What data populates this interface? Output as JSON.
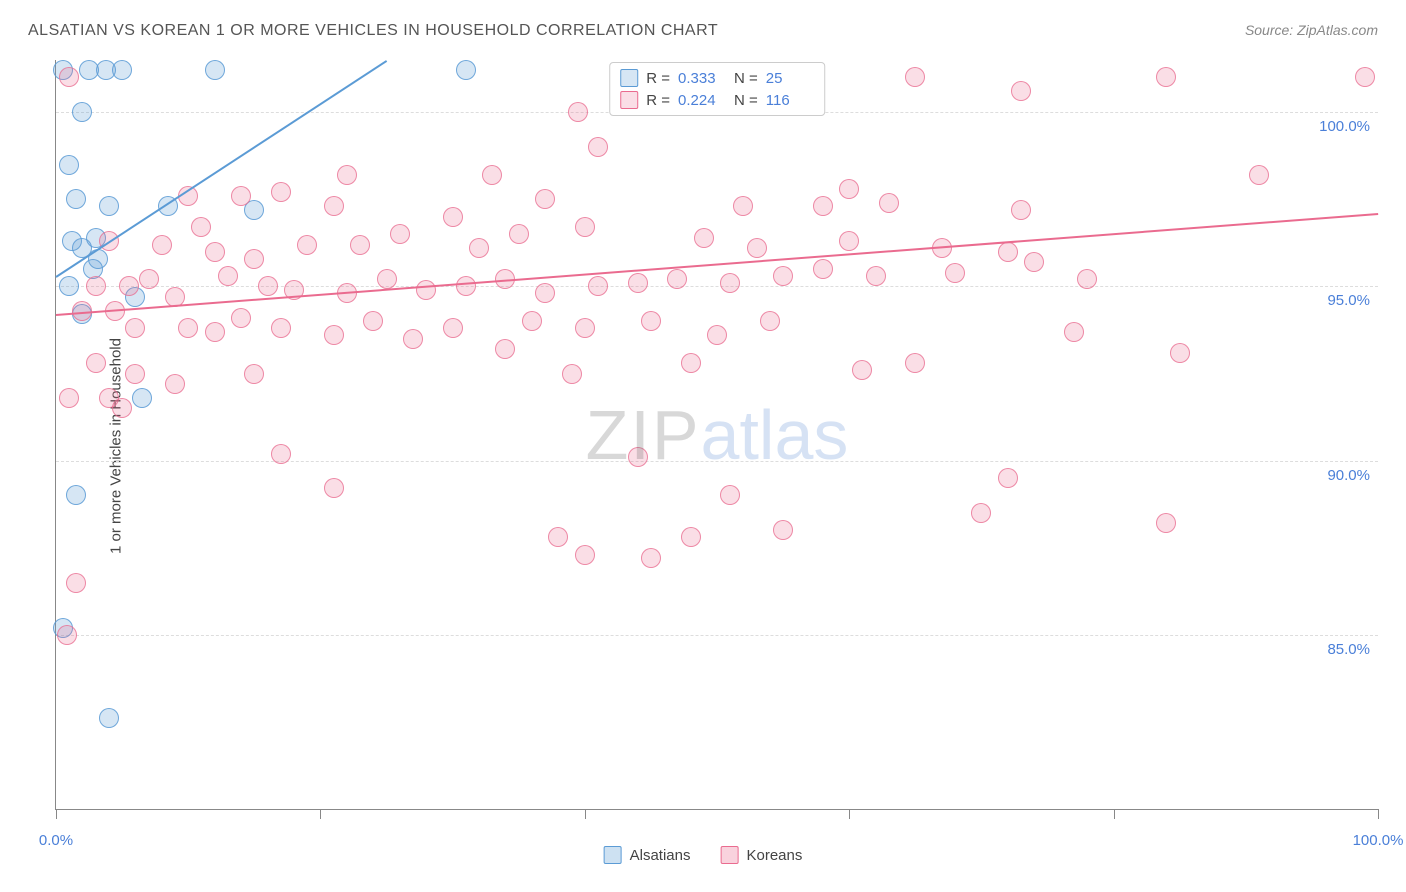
{
  "title": "ALSATIAN VS KOREAN 1 OR MORE VEHICLES IN HOUSEHOLD CORRELATION CHART",
  "source": "Source: ZipAtlas.com",
  "y_axis_label": "1 or more Vehicles in Household",
  "watermark": {
    "part1": "ZIP",
    "part2": "atlas"
  },
  "chart": {
    "type": "scatter",
    "background_color": "#ffffff",
    "grid_color": "#dddddd",
    "axis_color": "#888888",
    "label_color": "#4a7fd8",
    "title_color": "#555555",
    "title_fontsize": 16,
    "label_fontsize": 15,
    "xlim": [
      0,
      100
    ],
    "ylim": [
      80,
      101.5
    ],
    "x_ticks": [
      0,
      20,
      40,
      60,
      80,
      100
    ],
    "x_tick_labels": {
      "0": "0.0%",
      "100": "100.0%"
    },
    "y_gridlines": [
      85,
      90,
      95,
      100
    ],
    "y_tick_labels": {
      "85": "85.0%",
      "90": "90.0%",
      "95": "95.0%",
      "100": "100.0%"
    },
    "marker_radius": 10,
    "marker_fill_opacity": 0.25,
    "marker_stroke_opacity": 0.85,
    "line_width": 2,
    "series": [
      {
        "name": "Alsatians",
        "color": "#5b9bd5",
        "fill": "rgba(91,155,213,0.25)",
        "stroke": "rgba(91,155,213,0.85)",
        "r_value": "0.333",
        "n_value": "25",
        "trend": {
          "x1": 0,
          "y1": 95.3,
          "x2": 25,
          "y2": 101.5
        },
        "points": [
          [
            0.5,
            101.2
          ],
          [
            2.5,
            101.2
          ],
          [
            3.8,
            101.2
          ],
          [
            5.0,
            101.2
          ],
          [
            12.0,
            101.2
          ],
          [
            31.0,
            101.2
          ],
          [
            2.0,
            100.0
          ],
          [
            1.0,
            98.5
          ],
          [
            1.5,
            97.5
          ],
          [
            4.0,
            97.3
          ],
          [
            8.5,
            97.3
          ],
          [
            15.0,
            97.2
          ],
          [
            1.2,
            96.3
          ],
          [
            2.0,
            96.1
          ],
          [
            3.0,
            96.4
          ],
          [
            3.2,
            95.8
          ],
          [
            2.8,
            95.5
          ],
          [
            6.0,
            94.7
          ],
          [
            1.0,
            95.0
          ],
          [
            2.0,
            94.2
          ],
          [
            1.5,
            89.0
          ],
          [
            0.5,
            85.2
          ],
          [
            4.0,
            82.6
          ],
          [
            6.5,
            91.8
          ]
        ]
      },
      {
        "name": "Koreans",
        "color": "#ea6b8f",
        "fill": "rgba(234,107,143,0.22)",
        "stroke": "rgba(234,107,143,0.75)",
        "r_value": "0.224",
        "n_value": "116",
        "trend": {
          "x1": 0,
          "y1": 94.2,
          "x2": 100,
          "y2": 97.1
        },
        "points": [
          [
            1.0,
            101.0
          ],
          [
            50.0,
            101.0
          ],
          [
            65.0,
            101.0
          ],
          [
            73.0,
            100.6
          ],
          [
            84.0,
            101.0
          ],
          [
            99.0,
            101.0
          ],
          [
            39.5,
            100.0
          ],
          [
            41.0,
            99.0
          ],
          [
            33.0,
            98.2
          ],
          [
            37.0,
            97.5
          ],
          [
            91.0,
            98.2
          ],
          [
            10.0,
            97.6
          ],
          [
            14.0,
            97.6
          ],
          [
            17.0,
            97.7
          ],
          [
            21.0,
            97.3
          ],
          [
            22.0,
            98.2
          ],
          [
            30.0,
            97.0
          ],
          [
            52.0,
            97.3
          ],
          [
            58.0,
            97.3
          ],
          [
            60.0,
            97.8
          ],
          [
            63.0,
            97.4
          ],
          [
            73.0,
            97.2
          ],
          [
            4.0,
            96.3
          ],
          [
            8.0,
            96.2
          ],
          [
            11.0,
            96.7
          ],
          [
            12.0,
            96.0
          ],
          [
            15.0,
            95.8
          ],
          [
            19.0,
            96.2
          ],
          [
            23.0,
            96.2
          ],
          [
            26.0,
            96.5
          ],
          [
            32.0,
            96.1
          ],
          [
            35.0,
            96.5
          ],
          [
            40.0,
            96.7
          ],
          [
            49.0,
            96.4
          ],
          [
            53.0,
            96.1
          ],
          [
            60.0,
            96.3
          ],
          [
            67.0,
            96.1
          ],
          [
            72.0,
            96.0
          ],
          [
            3.0,
            95.0
          ],
          [
            5.5,
            95.0
          ],
          [
            7.0,
            95.2
          ],
          [
            9.0,
            94.7
          ],
          [
            13.0,
            95.3
          ],
          [
            16.0,
            95.0
          ],
          [
            18.0,
            94.9
          ],
          [
            22.0,
            94.8
          ],
          [
            25.0,
            95.2
          ],
          [
            28.0,
            94.9
          ],
          [
            31.0,
            95.0
          ],
          [
            34.0,
            95.2
          ],
          [
            37.0,
            94.8
          ],
          [
            41.0,
            95.0
          ],
          [
            44.0,
            95.1
          ],
          [
            47.0,
            95.2
          ],
          [
            51.0,
            95.1
          ],
          [
            55.0,
            95.3
          ],
          [
            58.0,
            95.5
          ],
          [
            62.0,
            95.3
          ],
          [
            68.0,
            95.4
          ],
          [
            74.0,
            95.7
          ],
          [
            78.0,
            95.2
          ],
          [
            2.0,
            94.3
          ],
          [
            4.5,
            94.3
          ],
          [
            6.0,
            93.8
          ],
          [
            10.0,
            93.8
          ],
          [
            12.0,
            93.7
          ],
          [
            14.0,
            94.1
          ],
          [
            17.0,
            93.8
          ],
          [
            21.0,
            93.6
          ],
          [
            24.0,
            94.0
          ],
          [
            27.0,
            93.5
          ],
          [
            30.0,
            93.8
          ],
          [
            34.0,
            93.2
          ],
          [
            36.0,
            94.0
          ],
          [
            40.0,
            93.8
          ],
          [
            45.0,
            94.0
          ],
          [
            50.0,
            93.6
          ],
          [
            54.0,
            94.0
          ],
          [
            77.0,
            93.7
          ],
          [
            85.0,
            93.1
          ],
          [
            3.0,
            92.8
          ],
          [
            6.0,
            92.5
          ],
          [
            9.0,
            92.2
          ],
          [
            15.0,
            92.5
          ],
          [
            39.0,
            92.5
          ],
          [
            48.0,
            92.8
          ],
          [
            61.0,
            92.6
          ],
          [
            65.0,
            92.8
          ],
          [
            1.0,
            91.8
          ],
          [
            5.0,
            91.5
          ],
          [
            4.0,
            91.8
          ],
          [
            17.0,
            90.2
          ],
          [
            44.0,
            90.1
          ],
          [
            21.0,
            89.2
          ],
          [
            51.0,
            89.0
          ],
          [
            72.0,
            89.5
          ],
          [
            38.0,
            87.8
          ],
          [
            40.0,
            87.3
          ],
          [
            45.0,
            87.2
          ],
          [
            48.0,
            87.8
          ],
          [
            55.0,
            88.0
          ],
          [
            70.0,
            88.5
          ],
          [
            84.0,
            88.2
          ],
          [
            1.5,
            86.5
          ],
          [
            0.8,
            85.0
          ]
        ]
      }
    ]
  },
  "legend_bottom": [
    {
      "label": "Alsatians",
      "color": "#5b9bd5",
      "fill": "rgba(91,155,213,0.3)"
    },
    {
      "label": "Koreans",
      "color": "#ea6b8f",
      "fill": "rgba(234,107,143,0.3)"
    }
  ]
}
